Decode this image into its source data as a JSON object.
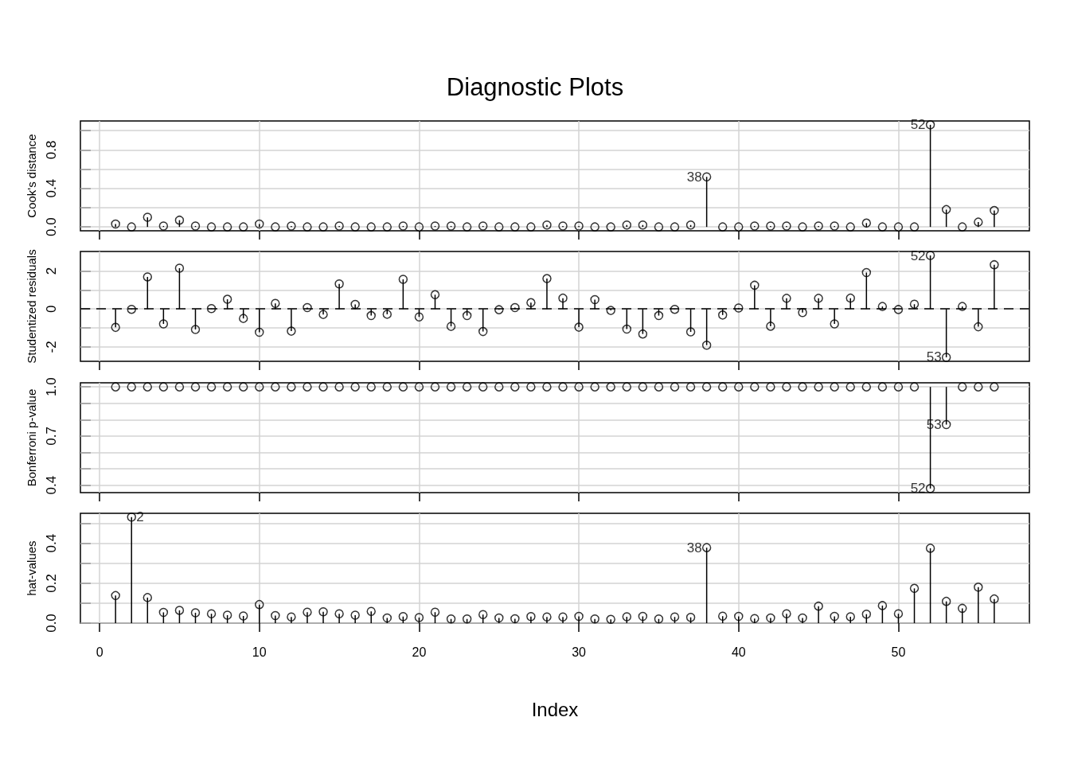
{
  "chart_data": [
    {
      "type": "lollipop",
      "title": "Diagnostic Plots",
      "ylabel": "Cook's distance",
      "x": [
        1,
        2,
        3,
        4,
        5,
        6,
        7,
        8,
        9,
        10,
        11,
        12,
        13,
        14,
        15,
        16,
        17,
        18,
        19,
        20,
        21,
        22,
        23,
        24,
        25,
        26,
        27,
        28,
        29,
        30,
        31,
        32,
        33,
        34,
        35,
        36,
        37,
        38,
        39,
        40,
        41,
        42,
        43,
        44,
        45,
        46,
        47,
        48,
        49,
        50,
        51,
        52,
        53,
        54,
        55,
        56
      ],
      "values": [
        0.03,
        0,
        0.1,
        0.01,
        0.07,
        0.01,
        0,
        0,
        0,
        0.03,
        0,
        0.01,
        0,
        0,
        0.01,
        0,
        0,
        0,
        0.01,
        0,
        0.01,
        0.01,
        0,
        0.01,
        0,
        0,
        0,
        0.02,
        0.01,
        0.01,
        0,
        0,
        0.02,
        0.02,
        0,
        0,
        0.02,
        0.52,
        0,
        0,
        0.01,
        0.01,
        0.01,
        0,
        0.01,
        0.01,
        0,
        0.04,
        0,
        0,
        0,
        1.06,
        0.18,
        0,
        0.05,
        0.17
      ],
      "color": "#000000",
      "marker": "circle",
      "xlim": [
        -1.2,
        58.2
      ],
      "xticks": [
        0,
        10,
        20,
        30,
        40,
        50
      ],
      "ylim": [
        -0.04,
        1.1
      ],
      "yticks": [
        {
          "value": 0,
          "label": "0.0"
        },
        {
          "value": 0.2,
          "label": null
        },
        0.4,
        {
          "value": 0.6,
          "label": null
        },
        0.8,
        {
          "value": 1,
          "label": null
        }
      ],
      "grid": true,
      "tick_labels": "y",
      "annotations": [
        {
          "text": "38",
          "x": 38,
          "y": 0.52
        },
        {
          "text": "52",
          "x": 52,
          "y": 1.06
        }
      ]
    },
    {
      "type": "lollipop",
      "ylabel": "Studentized residuals",
      "x": [
        1,
        2,
        3,
        4,
        5,
        6,
        7,
        8,
        9,
        10,
        11,
        12,
        13,
        14,
        15,
        16,
        17,
        18,
        19,
        20,
        21,
        22,
        23,
        24,
        25,
        26,
        27,
        28,
        29,
        30,
        31,
        32,
        33,
        34,
        35,
        36,
        37,
        38,
        39,
        40,
        41,
        42,
        43,
        44,
        45,
        46,
        47,
        48,
        49,
        50,
        51,
        52,
        53,
        54,
        55,
        56
      ],
      "values": [
        -0.97,
        -0.02,
        1.69,
        -0.79,
        2.15,
        -1.08,
        0.02,
        0.51,
        -0.5,
        -1.23,
        0.29,
        -1.17,
        0.07,
        -0.29,
        1.32,
        0.24,
        -0.35,
        -0.28,
        1.56,
        -0.42,
        0.75,
        -0.92,
        -0.35,
        -1.19,
        -0.04,
        0.07,
        0.33,
        1.6,
        0.57,
        -0.96,
        0.49,
        -0.08,
        -1.06,
        -1.32,
        -0.35,
        -0.02,
        -1.21,
        -1.91,
        -0.32,
        0.05,
        1.25,
        -0.91,
        0.56,
        -0.19,
        0.56,
        -0.79,
        0.57,
        1.92,
        0.13,
        -0.03,
        0.25,
        2.82,
        -2.55,
        0.13,
        -0.94,
        2.33
      ],
      "color": "#000000",
      "marker": "circle",
      "xlim": [
        -1.2,
        58.2
      ],
      "xticks": [
        0,
        10,
        20,
        30,
        40,
        50
      ],
      "ylim": [
        -2.76,
        3.03
      ],
      "yticks": [
        -2,
        {
          "value": -1,
          "label": null
        },
        0,
        {
          "value": 1,
          "label": null
        },
        2
      ],
      "grid": true,
      "tick_labels": "y",
      "ref_lines": [
        {
          "axis": "y",
          "value": 0,
          "line_style": "dashed"
        }
      ],
      "annotations": [
        {
          "text": "52",
          "x": 52,
          "y": 2.82
        },
        {
          "text": "53",
          "x": 53,
          "y": -2.55
        }
      ]
    },
    {
      "type": "scatter",
      "ylabel": "Bonferroni p-value",
      "x": [
        1,
        2,
        3,
        4,
        5,
        6,
        7,
        8,
        9,
        10,
        11,
        12,
        13,
        14,
        15,
        16,
        17,
        18,
        19,
        20,
        21,
        22,
        23,
        24,
        25,
        26,
        27,
        28,
        29,
        30,
        31,
        32,
        33,
        34,
        35,
        36,
        37,
        38,
        39,
        40,
        41,
        42,
        43,
        44,
        45,
        46,
        47,
        48,
        49,
        50,
        51,
        52,
        53,
        54,
        55,
        56
      ],
      "values": [
        1,
        1,
        1,
        1,
        1,
        1,
        1,
        1,
        1,
        1,
        1,
        1,
        1,
        1,
        1,
        1,
        1,
        1,
        1,
        1,
        1,
        1,
        1,
        1,
        1,
        1,
        1,
        1,
        1,
        1,
        1,
        1,
        1,
        1,
        1,
        1,
        1,
        1,
        1,
        1,
        1,
        1,
        1,
        1,
        1,
        1,
        1,
        1,
        1,
        1,
        1,
        0.38,
        0.77,
        1,
        1,
        1
      ],
      "errors": [
        null,
        null,
        null,
        null,
        null,
        null,
        null,
        null,
        null,
        null,
        null,
        null,
        null,
        null,
        null,
        null,
        null,
        null,
        null,
        null,
        null,
        null,
        null,
        null,
        null,
        null,
        null,
        null,
        null,
        null,
        null,
        null,
        null,
        null,
        null,
        null,
        null,
        null,
        null,
        null,
        null,
        null,
        null,
        null,
        null,
        null,
        null,
        null,
        null,
        null,
        null,
        [
          0.38,
          1
        ],
        [
          0.77,
          1
        ],
        null,
        null,
        null
      ],
      "color": "#000000",
      "marker": "circle",
      "xlim": [
        -1.2,
        58.2
      ],
      "xticks": [
        0,
        10,
        20,
        30,
        40,
        50
      ],
      "ylim": [
        0.355,
        1.025
      ],
      "yticks": [
        0.4,
        {
          "value": 0.5,
          "label": null
        },
        {
          "value": 0.6,
          "label": null
        },
        0.7,
        {
          "value": 0.8,
          "label": null
        },
        {
          "value": 0.9,
          "label": null
        },
        {
          "value": 1,
          "label": "1.0"
        }
      ],
      "grid": true,
      "tick_labels": "y",
      "annotations": [
        {
          "text": "53",
          "x": 53,
          "y": 0.77
        },
        {
          "text": "52",
          "x": 52,
          "y": 0.38
        }
      ]
    },
    {
      "type": "lollipop",
      "ylabel": "hat-values",
      "xlabel": "Index",
      "x": [
        1,
        2,
        3,
        4,
        5,
        6,
        7,
        8,
        9,
        10,
        11,
        12,
        13,
        14,
        15,
        16,
        17,
        18,
        19,
        20,
        21,
        22,
        23,
        24,
        25,
        26,
        27,
        28,
        29,
        30,
        31,
        32,
        33,
        34,
        35,
        36,
        37,
        38,
        39,
        40,
        41,
        42,
        43,
        44,
        45,
        46,
        47,
        48,
        49,
        50,
        51,
        52,
        53,
        54,
        55,
        56
      ],
      "values": [
        0.138,
        0.531,
        0.128,
        0.054,
        0.064,
        0.052,
        0.047,
        0.04,
        0.036,
        0.093,
        0.038,
        0.031,
        0.055,
        0.057,
        0.047,
        0.04,
        0.059,
        0.026,
        0.033,
        0.028,
        0.055,
        0.021,
        0.021,
        0.043,
        0.026,
        0.022,
        0.033,
        0.031,
        0.031,
        0.034,
        0.021,
        0.019,
        0.032,
        0.034,
        0.021,
        0.031,
        0.029,
        0.378,
        0.035,
        0.034,
        0.023,
        0.026,
        0.047,
        0.026,
        0.085,
        0.034,
        0.032,
        0.045,
        0.088,
        0.047,
        0.174,
        0.375,
        0.109,
        0.074,
        0.18,
        0.121
      ],
      "color": "#000000",
      "marker": "circle",
      "xlim": [
        -1.2,
        58.2
      ],
      "xticks": [
        0,
        10,
        20,
        30,
        40,
        50
      ],
      "ylim": [
        0,
        0.55
      ],
      "yticks": [
        {
          "value": 0,
          "label": "0.0"
        },
        {
          "value": 0.1,
          "label": null
        },
        0.2,
        {
          "value": 0.3,
          "label": null
        },
        0.4,
        {
          "value": 0.5,
          "label": null
        }
      ],
      "grid": true,
      "annotations": [
        {
          "text": "2",
          "x": 2,
          "y": 0.531
        },
        {
          "text": "38",
          "x": 38,
          "y": 0.378
        }
      ]
    }
  ]
}
